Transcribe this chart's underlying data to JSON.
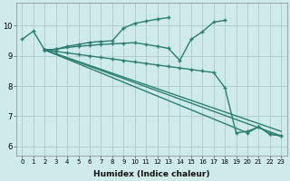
{
  "xlabel": "Humidex (Indice chaleur)",
  "bg_color": "#ceeaea",
  "grid_color": "#b0d0d0",
  "line_color": "#2e7d72",
  "xlim": [
    -0.5,
    23.5
  ],
  "ylim": [
    5.7,
    10.75
  ],
  "yticks": [
    6,
    7,
    8,
    9,
    10
  ],
  "xticks": [
    0,
    1,
    2,
    3,
    4,
    5,
    6,
    7,
    8,
    9,
    10,
    11,
    12,
    13,
    14,
    15,
    16,
    17,
    18,
    19,
    20,
    21,
    22,
    23
  ],
  "s1x": [
    0,
    1,
    2,
    3,
    4,
    5,
    6,
    7,
    8,
    9,
    10,
    11,
    12,
    13
  ],
  "s1y": [
    9.55,
    9.82,
    9.2,
    9.22,
    9.32,
    9.38,
    9.45,
    9.48,
    9.5,
    9.92,
    10.08,
    10.15,
    10.22,
    10.27
  ],
  "s2x": [
    2,
    3,
    4,
    5,
    6,
    7,
    8,
    9,
    10,
    11,
    12,
    13,
    14,
    15,
    16,
    17,
    18
  ],
  "s2y": [
    9.2,
    9.22,
    9.28,
    9.32,
    9.35,
    9.38,
    9.4,
    9.42,
    9.44,
    9.38,
    9.32,
    9.25,
    8.85,
    9.55,
    9.8,
    10.12,
    10.18
  ],
  "s3x": [
    2,
    3,
    4,
    5,
    6,
    7,
    8,
    9,
    10,
    11,
    12,
    13,
    14,
    15,
    16,
    17,
    18,
    19,
    20,
    21,
    22,
    23
  ],
  "s3y": [
    9.2,
    9.15,
    9.1,
    9.05,
    9.0,
    8.95,
    8.9,
    8.85,
    8.8,
    8.75,
    8.7,
    8.65,
    8.6,
    8.55,
    8.5,
    8.45,
    7.95,
    6.45,
    6.5,
    6.65,
    6.4,
    6.35
  ],
  "s4x": [
    2,
    23
  ],
  "s4y": [
    9.2,
    6.35
  ],
  "s5x": [
    2,
    23
  ],
  "s5y": [
    9.2,
    6.5
  ],
  "s6x": [
    2,
    20,
    21,
    22,
    23
  ],
  "s6y": [
    9.2,
    6.45,
    6.65,
    6.42,
    6.35
  ]
}
